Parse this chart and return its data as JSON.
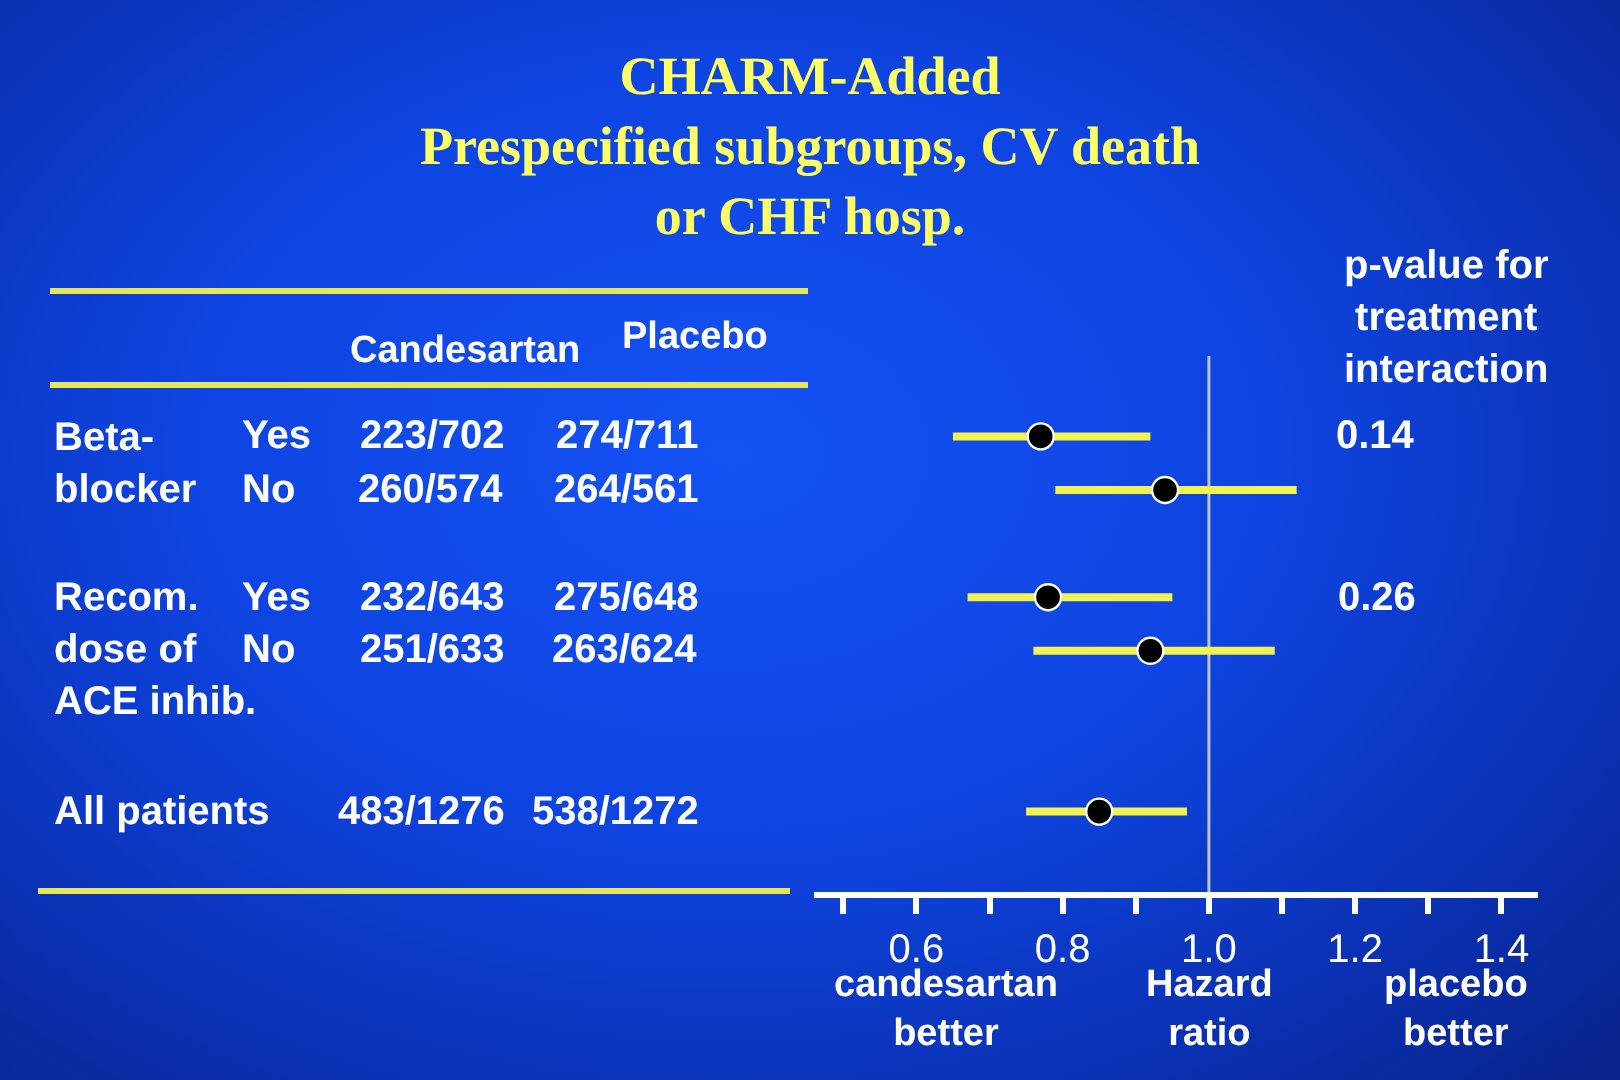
{
  "chart_data": {
    "type": "scatter",
    "title": "CHARM-Added\nPrespecified subgroups, CV death\nor CHF hosp.",
    "orientation": "horizontal",
    "categories": [
      null,
      null,
      null,
      null,
      null,
      null,
      null,
      null,
      null,
      null
    ],
    "values": [
      null,
      0.77,
      0.94,
      null,
      0.78,
      0.92,
      null,
      null,
      0.85,
      null
    ],
    "errors": [
      null,
      [
        0.65,
        0.92
      ],
      [
        0.79,
        1.12
      ],
      null,
      [
        0.67,
        0.95
      ],
      [
        0.76,
        1.09
      ],
      null,
      null,
      [
        0.75,
        0.97
      ],
      null
    ],
    "color": "#000000",
    "marker": "circle",
    "tick_labels": "x",
    "xlim": [
      0.46,
      1.45
    ],
    "xticks": [
      {
        "value": 0.5,
        "label": null
      },
      0.6,
      {
        "value": 0.7,
        "label": null
      },
      0.8,
      {
        "value": 0.9,
        "label": null
      },
      {
        "value": 1,
        "label": "1.0"
      },
      {
        "value": 1.1,
        "label": null
      },
      1.2,
      {
        "value": 1.3,
        "label": null
      },
      1.4
    ],
    "xlabel": "Hazard\nratio",
    "ref_lines": [
      {
        "axis": "x",
        "value": 1,
        "color": "#b8c4e8"
      }
    ],
    "annotations": [
      "Candesartan",
      "Placebo",
      "p-value for\ntreatment\ninteraction",
      "Beta-\nblocker",
      "Yes",
      "223/702",
      "274/711",
      "0.14",
      "No",
      "260/574",
      "264/561",
      "Recom.\ndose of\nACE inhib.",
      "Yes",
      "232/643",
      "275/648",
      "0.26",
      "No",
      "251/633",
      "263/624",
      "All patients",
      "483/1276",
      "538/1272",
      "candesartan\nbetter",
      "placebo\nbetter"
    ]
  }
}
